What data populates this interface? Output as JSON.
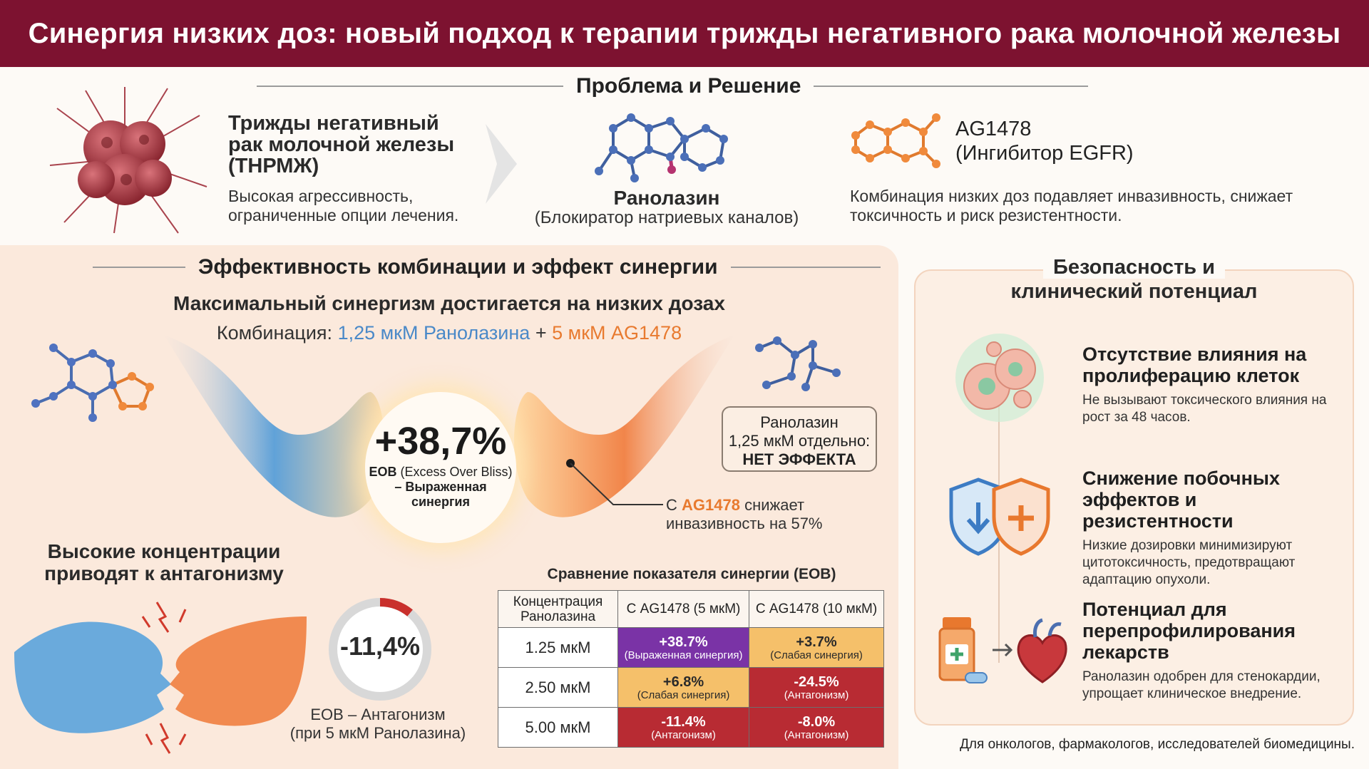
{
  "header": {
    "title": "Синергия низких доз: новый подход к терапии трижды негативного рака молочной железы"
  },
  "problem": {
    "section_title": "Проблема и Решение",
    "tnbc_title": "Трижды негативный рак молочной железы (ТНРМЖ)",
    "tnbc_desc": "Высокая агрессивность, ограниченные опции лечения.",
    "ranolazine_title": "Ранолазин",
    "ranolazine_sub": "(Блокиратор натриевых каналов)",
    "ag_title": "AG1478",
    "ag_sub": "(Ингибитор EGFR)",
    "combo_desc": "Комбинация низких доз подавляет инвазивность, снижает токсичность и риск резистентности."
  },
  "efficacy": {
    "section_title": "Эффективность комбинации и эффект синергии",
    "subtitle": "Максимальный синергизм достигается на низких дозах",
    "combo_prefix": "Комбинация:",
    "combo_ran": "1,25 мкМ Ранолазина",
    "combo_plus": "+",
    "combo_ag": "5 мкМ AG1478",
    "eob_value": "+38,7%",
    "eob_label_1": "EOB",
    "eob_label_2": "(Excess Over Bliss)",
    "eob_label_3": "– Выраженная синергия",
    "ran_alone_1": "Ранолазин",
    "ran_alone_2": "1,25 мкМ отдельно:",
    "ran_alone_3": "НЕТ ЭФФЕКТА",
    "ag_inv_1": "С",
    "ag_inv_ag": "AG1478",
    "ag_inv_2": "снижает",
    "ag_inv_3": "инвазивность на 57%",
    "high_conc_title": "Высокие концентрации приводят к антагонизму",
    "antag_value": "-11,4%",
    "antag_lbl_1": "EOB – Антагонизм",
    "antag_lbl_2": "(при 5 мкМ Ранолазина)",
    "antag_gauge_fraction": 0.11
  },
  "table": {
    "title": "Сравнение показателя синергии (EOB)",
    "headers": [
      "Концентрация Ранолазина",
      "С AG1478 (5 мкМ)",
      "С AG1478 (10 мкМ)"
    ],
    "rows": [
      {
        "conc": "1.25 мкМ",
        "c1": "+38.7%",
        "c1_sub": "(Выраженная синергия)",
        "c2": "+3.7%",
        "c2_sub": "(Слабая синергия)"
      },
      {
        "conc": "2.50 мкМ",
        "c1": "+6.8%",
        "c1_sub": "(Слабая синергия)",
        "c2": "-24.5%",
        "c2_sub": "(Антагонизм)"
      },
      {
        "conc": "5.00 мкМ",
        "c1": "-11.4%",
        "c1_sub": "(Антагонизм)",
        "c2": "-8.0%",
        "c2_sub": "(Антагонизм)"
      }
    ]
  },
  "safety": {
    "section_title_1": "Безопасность и",
    "section_title_2": "клинический потенциал",
    "items": [
      {
        "title": "Отсутствие влияния на пролиферацию клеток",
        "desc": "Не вызывают токсического влияния на рост за 48 часов."
      },
      {
        "title": "Снижение побочных эффектов и резистентности",
        "desc": "Низкие дозировки минимизируют цитотоксичность, предотвращают адаптацию опухоли."
      },
      {
        "title": "Потенциал для перепрофилирования лекарств",
        "desc": "Ранолазин одобрен для стенокардии, упрощает клиническое внедрение."
      }
    ]
  },
  "footer": {
    "text": "Для онкологов, фармакологов, исследователей биомедицины."
  },
  "colors": {
    "header_bg": "#7d1230",
    "blue": "#4a89c8",
    "orange": "#e87a2f",
    "purple": "#7a33a6",
    "yellow": "#f5c06a",
    "red": "#b82b33"
  }
}
